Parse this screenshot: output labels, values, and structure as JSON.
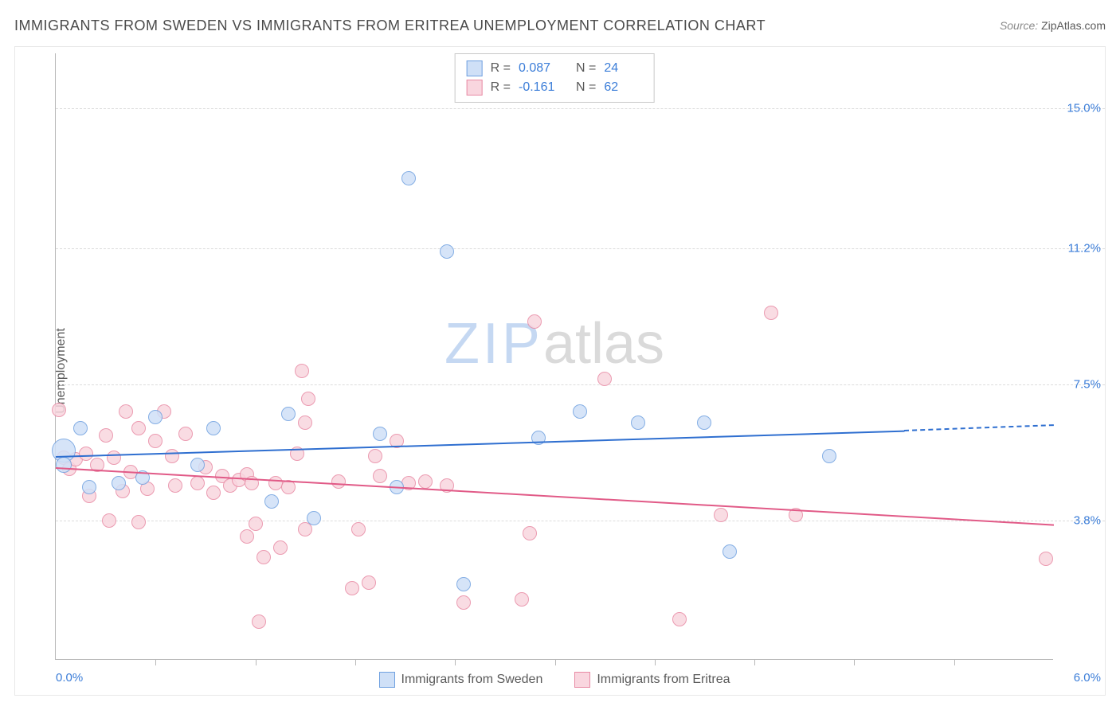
{
  "title": "IMMIGRANTS FROM SWEDEN VS IMMIGRANTS FROM ERITREA UNEMPLOYMENT CORRELATION CHART",
  "source_prefix": "Source:",
  "source_name": "ZipAtlas.com",
  "ylabel": "Unemployment",
  "watermark_part1": "ZIP",
  "watermark_part2": "atlas",
  "chart": {
    "type": "scatter-with-trend",
    "xlim": [
      0.0,
      6.0
    ],
    "ylim": [
      0.0,
      16.5
    ],
    "x_axis_label_left": "0.0%",
    "x_axis_label_right": "6.0%",
    "y_gridlines": [
      3.8,
      7.5,
      11.2,
      15.0
    ],
    "y_grid_labels": [
      "3.8%",
      "7.5%",
      "11.2%",
      "15.0%"
    ],
    "x_ticks": [
      0.6,
      1.2,
      1.8,
      2.4,
      3.0,
      3.6,
      4.2,
      4.8,
      5.4
    ],
    "background_color": "#ffffff",
    "grid_color": "#dcdcdc",
    "axis_color": "#b8b8b8",
    "series": [
      {
        "id": "sweden",
        "label": "Immigrants from Sweden",
        "fill": "#cfe0f7",
        "stroke": "#6fa0e0",
        "line_color": "#2f6fd0",
        "R": "0.087",
        "N": "24",
        "trend": {
          "x1": 0.0,
          "y1": 5.55,
          "x2": 5.1,
          "y2": 6.25,
          "dash_to_x": 6.0,
          "dash_to_y": 6.4
        },
        "points": [
          {
            "x": 0.05,
            "y": 5.7,
            "r": 14
          },
          {
            "x": 0.05,
            "y": 5.3,
            "r": 9
          },
          {
            "x": 0.15,
            "y": 6.3,
            "r": 8
          },
          {
            "x": 0.2,
            "y": 4.7,
            "r": 8
          },
          {
            "x": 0.38,
            "y": 4.8,
            "r": 8
          },
          {
            "x": 0.52,
            "y": 4.95,
            "r": 8
          },
          {
            "x": 0.6,
            "y": 6.6,
            "r": 8
          },
          {
            "x": 0.85,
            "y": 5.3,
            "r": 8
          },
          {
            "x": 0.95,
            "y": 6.3,
            "r": 8
          },
          {
            "x": 1.3,
            "y": 4.3,
            "r": 8
          },
          {
            "x": 1.4,
            "y": 6.7,
            "r": 8
          },
          {
            "x": 1.55,
            "y": 3.85,
            "r": 8
          },
          {
            "x": 1.95,
            "y": 6.15,
            "r": 8
          },
          {
            "x": 2.05,
            "y": 4.7,
            "r": 8
          },
          {
            "x": 2.12,
            "y": 13.1,
            "r": 8
          },
          {
            "x": 2.35,
            "y": 11.1,
            "r": 8
          },
          {
            "x": 2.45,
            "y": 2.05,
            "r": 8
          },
          {
            "x": 2.9,
            "y": 6.05,
            "r": 8
          },
          {
            "x": 3.15,
            "y": 6.75,
            "r": 8
          },
          {
            "x": 3.5,
            "y": 6.45,
            "r": 8
          },
          {
            "x": 3.9,
            "y": 6.45,
            "r": 8
          },
          {
            "x": 4.05,
            "y": 2.95,
            "r": 8
          },
          {
            "x": 4.65,
            "y": 5.55,
            "r": 8
          }
        ]
      },
      {
        "id": "eritrea",
        "label": "Immigrants from Eritrea",
        "fill": "#f9d6df",
        "stroke": "#e88aa4",
        "line_color": "#e15a87",
        "R": "-0.161",
        "N": "62",
        "trend": {
          "x1": 0.0,
          "y1": 5.25,
          "x2": 6.0,
          "y2": 3.7
        },
        "points": [
          {
            "x": 0.02,
            "y": 6.8,
            "r": 8
          },
          {
            "x": 0.05,
            "y": 5.5,
            "r": 8
          },
          {
            "x": 0.08,
            "y": 5.2,
            "r": 8
          },
          {
            "x": 0.12,
            "y": 5.45,
            "r": 8
          },
          {
            "x": 0.18,
            "y": 5.6,
            "r": 8
          },
          {
            "x": 0.2,
            "y": 4.45,
            "r": 8
          },
          {
            "x": 0.25,
            "y": 5.3,
            "r": 8
          },
          {
            "x": 0.3,
            "y": 6.1,
            "r": 8
          },
          {
            "x": 0.32,
            "y": 3.8,
            "r": 8
          },
          {
            "x": 0.35,
            "y": 5.5,
            "r": 8
          },
          {
            "x": 0.4,
            "y": 4.6,
            "r": 8
          },
          {
            "x": 0.42,
            "y": 6.75,
            "r": 8
          },
          {
            "x": 0.45,
            "y": 5.1,
            "r": 8
          },
          {
            "x": 0.5,
            "y": 6.3,
            "r": 8
          },
          {
            "x": 0.5,
            "y": 3.75,
            "r": 8
          },
          {
            "x": 0.55,
            "y": 4.65,
            "r": 8
          },
          {
            "x": 0.6,
            "y": 5.95,
            "r": 8
          },
          {
            "x": 0.65,
            "y": 6.75,
            "r": 8
          },
          {
            "x": 0.7,
            "y": 5.55,
            "r": 8
          },
          {
            "x": 0.72,
            "y": 4.75,
            "r": 8
          },
          {
            "x": 0.78,
            "y": 6.15,
            "r": 8
          },
          {
            "x": 0.85,
            "y": 4.8,
            "r": 8
          },
          {
            "x": 0.9,
            "y": 5.25,
            "r": 8
          },
          {
            "x": 0.95,
            "y": 4.55,
            "r": 8
          },
          {
            "x": 1.0,
            "y": 5.0,
            "r": 8
          },
          {
            "x": 1.05,
            "y": 4.75,
            "r": 8
          },
          {
            "x": 1.1,
            "y": 4.9,
            "r": 8
          },
          {
            "x": 1.15,
            "y": 3.35,
            "r": 8
          },
          {
            "x": 1.15,
            "y": 5.05,
            "r": 8
          },
          {
            "x": 1.18,
            "y": 4.8,
            "r": 8
          },
          {
            "x": 1.2,
            "y": 3.7,
            "r": 8
          },
          {
            "x": 1.22,
            "y": 1.05,
            "r": 8
          },
          {
            "x": 1.25,
            "y": 2.8,
            "r": 8
          },
          {
            "x": 1.32,
            "y": 4.8,
            "r": 8
          },
          {
            "x": 1.35,
            "y": 3.05,
            "r": 8
          },
          {
            "x": 1.4,
            "y": 4.7,
            "r": 8
          },
          {
            "x": 1.45,
            "y": 5.6,
            "r": 8
          },
          {
            "x": 1.48,
            "y": 7.85,
            "r": 8
          },
          {
            "x": 1.5,
            "y": 6.45,
            "r": 8
          },
          {
            "x": 1.5,
            "y": 3.55,
            "r": 8
          },
          {
            "x": 1.52,
            "y": 7.1,
            "r": 8
          },
          {
            "x": 1.7,
            "y": 4.85,
            "r": 8
          },
          {
            "x": 1.78,
            "y": 1.95,
            "r": 8
          },
          {
            "x": 1.82,
            "y": 3.55,
            "r": 8
          },
          {
            "x": 1.88,
            "y": 2.1,
            "r": 8
          },
          {
            "x": 1.92,
            "y": 5.55,
            "r": 8
          },
          {
            "x": 1.95,
            "y": 5.0,
            "r": 8
          },
          {
            "x": 2.05,
            "y": 5.95,
            "r": 8
          },
          {
            "x": 2.12,
            "y": 4.8,
            "r": 8
          },
          {
            "x": 2.22,
            "y": 4.85,
            "r": 8
          },
          {
            "x": 2.35,
            "y": 4.75,
            "r": 8
          },
          {
            "x": 2.45,
            "y": 1.55,
            "r": 8
          },
          {
            "x": 2.8,
            "y": 1.65,
            "r": 8
          },
          {
            "x": 2.85,
            "y": 3.45,
            "r": 8
          },
          {
            "x": 2.88,
            "y": 9.2,
            "r": 8
          },
          {
            "x": 3.3,
            "y": 7.65,
            "r": 8
          },
          {
            "x": 3.75,
            "y": 1.1,
            "r": 8
          },
          {
            "x": 4.0,
            "y": 3.95,
            "r": 8
          },
          {
            "x": 4.3,
            "y": 9.45,
            "r": 8
          },
          {
            "x": 4.45,
            "y": 3.95,
            "r": 8
          },
          {
            "x": 5.95,
            "y": 2.75,
            "r": 8
          }
        ]
      }
    ]
  },
  "stats_box": {
    "rows": [
      {
        "series": "sweden",
        "r_label": "R =",
        "r_val": "0.087",
        "n_label": "N =",
        "n_val": "24"
      },
      {
        "series": "eritrea",
        "r_label": "R =",
        "r_val": "-0.161",
        "n_label": "N =",
        "n_val": "62"
      }
    ]
  },
  "legend": [
    {
      "series": "sweden",
      "label": "Immigrants from Sweden"
    },
    {
      "series": "eritrea",
      "label": "Immigrants from Eritrea"
    }
  ]
}
